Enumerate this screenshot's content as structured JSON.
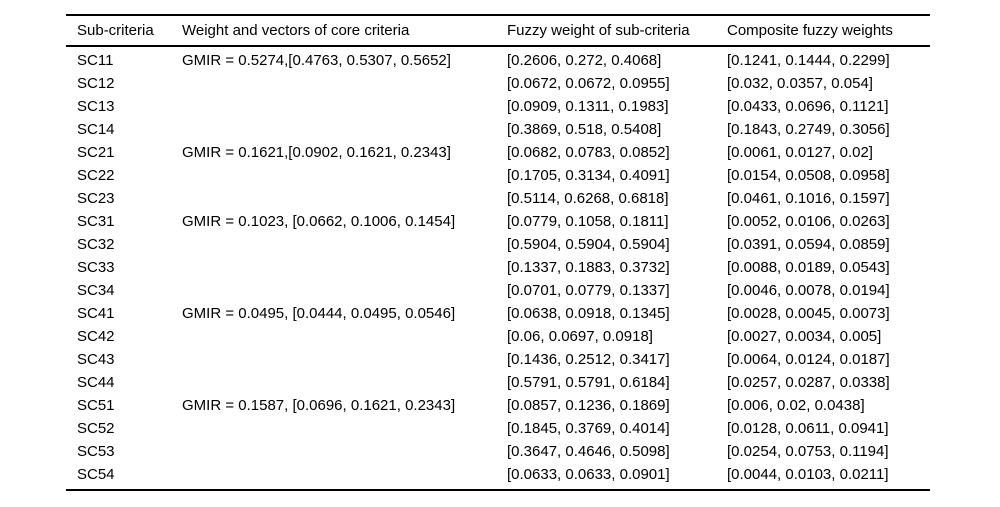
{
  "colors": {
    "background": "#ffffff",
    "text": "#000000",
    "rule": "#000000"
  },
  "table": {
    "columns": [
      {
        "label": "Sub-criteria"
      },
      {
        "label": "Weight and vectors of core criteria"
      },
      {
        "label": "Fuzzy weight of sub-criteria"
      },
      {
        "label": "Composite fuzzy weights"
      }
    ],
    "rows": [
      {
        "sub_criteria": "SC11",
        "core_weight": "GMIR = 0.5274,[0.4763, 0.5307, 0.5652]",
        "fuzzy_weight": "[0.2606, 0.272, 0.4068]",
        "composite_weight": "[0.1241, 0.1444, 0.2299]"
      },
      {
        "sub_criteria": "SC12",
        "core_weight": "",
        "fuzzy_weight": "[0.0672, 0.0672, 0.0955]",
        "composite_weight": "[0.032, 0.0357, 0.054]"
      },
      {
        "sub_criteria": "SC13",
        "core_weight": "",
        "fuzzy_weight": "[0.0909, 0.1311, 0.1983]",
        "composite_weight": "[0.0433, 0.0696, 0.1121]"
      },
      {
        "sub_criteria": "SC14",
        "core_weight": "",
        "fuzzy_weight": "[0.3869, 0.518, 0.5408]",
        "composite_weight": "[0.1843, 0.2749, 0.3056]"
      },
      {
        "sub_criteria": "SC21",
        "core_weight": "GMIR = 0.1621,[0.0902, 0.1621, 0.2343]",
        "fuzzy_weight": "[0.0682, 0.0783, 0.0852]",
        "composite_weight": "[0.0061, 0.0127, 0.02]"
      },
      {
        "sub_criteria": "SC22",
        "core_weight": "",
        "fuzzy_weight": "[0.1705, 0.3134, 0.4091]",
        "composite_weight": "[0.0154, 0.0508, 0.0958]"
      },
      {
        "sub_criteria": "SC23",
        "core_weight": "",
        "fuzzy_weight": "[0.5114, 0.6268, 0.6818]",
        "composite_weight": "[0.0461, 0.1016, 0.1597]"
      },
      {
        "sub_criteria": "SC31",
        "core_weight": "GMIR = 0.1023, [0.0662, 0.1006, 0.1454]",
        "fuzzy_weight": "[0.0779, 0.1058, 0.1811]",
        "composite_weight": "[0.0052, 0.0106, 0.0263]"
      },
      {
        "sub_criteria": "SC32",
        "core_weight": "",
        "fuzzy_weight": "[0.5904, 0.5904, 0.5904]",
        "composite_weight": "[0.0391, 0.0594, 0.0859]"
      },
      {
        "sub_criteria": "SC33",
        "core_weight": "",
        "fuzzy_weight": "[0.1337, 0.1883, 0.3732]",
        "composite_weight": "[0.0088, 0.0189, 0.0543]"
      },
      {
        "sub_criteria": "SC34",
        "core_weight": "",
        "fuzzy_weight": "[0.0701, 0.0779, 0.1337]",
        "composite_weight": "[0.0046, 0.0078, 0.0194]"
      },
      {
        "sub_criteria": "SC41",
        "core_weight": "GMIR = 0.0495, [0.0444, 0.0495, 0.0546]",
        "fuzzy_weight": "[0.0638, 0.0918, 0.1345]",
        "composite_weight": "[0.0028, 0.0045, 0.0073]"
      },
      {
        "sub_criteria": "SC42",
        "core_weight": "",
        "fuzzy_weight": "[0.06, 0.0697, 0.0918]",
        "composite_weight": "[0.0027, 0.0034, 0.005]"
      },
      {
        "sub_criteria": "SC43",
        "core_weight": "",
        "fuzzy_weight": "[0.1436, 0.2512, 0.3417]",
        "composite_weight": "[0.0064, 0.0124, 0.0187]"
      },
      {
        "sub_criteria": "SC44",
        "core_weight": "",
        "fuzzy_weight": "[0.5791, 0.5791, 0.6184]",
        "composite_weight": "[0.0257, 0.0287, 0.0338]"
      },
      {
        "sub_criteria": "SC51",
        "core_weight": "GMIR = 0.1587, [0.0696, 0.1621, 0.2343]",
        "fuzzy_weight": "[0.0857, 0.1236, 0.1869]",
        "composite_weight": "[0.006, 0.02, 0.0438]"
      },
      {
        "sub_criteria": "SC52",
        "core_weight": "",
        "fuzzy_weight": "[0.1845, 0.3769, 0.4014]",
        "composite_weight": "[0.0128, 0.0611, 0.0941]"
      },
      {
        "sub_criteria": "SC53",
        "core_weight": "",
        "fuzzy_weight": "[0.3647, 0.4646, 0.5098]",
        "composite_weight": "[0.0254, 0.0753, 0.1194]"
      },
      {
        "sub_criteria": "SC54",
        "core_weight": "",
        "fuzzy_weight": "[0.0633, 0.0633, 0.0901]",
        "composite_weight": "[0.0044, 0.0103, 0.0211]"
      }
    ]
  }
}
